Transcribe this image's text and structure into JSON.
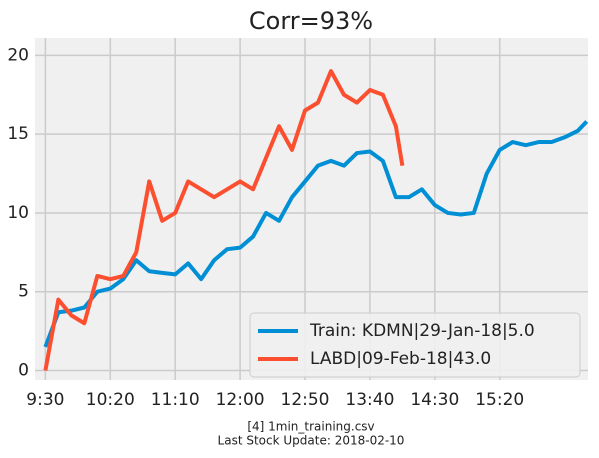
{
  "chart_data": {
    "type": "line",
    "title": "Corr=93%",
    "footnote": [
      "[4] 1min_training.csv",
      "Last Stock Update: 2018-02-10"
    ],
    "legend": "lower right",
    "grid": true,
    "xlim": [
      562,
      988
    ],
    "ylim": [
      -0.6,
      21.1
    ],
    "xticks": [
      {
        "value": 570,
        "label": "9:30"
      },
      {
        "value": 620,
        "label": "10:20"
      },
      {
        "value": 670,
        "label": "11:10"
      },
      {
        "value": 720,
        "label": "12:00"
      },
      {
        "value": 770,
        "label": "12:50"
      },
      {
        "value": 820,
        "label": "13:40"
      },
      {
        "value": 870,
        "label": "14:30"
      },
      {
        "value": 920,
        "label": "15:20"
      }
    ],
    "yticks": [
      0,
      5,
      10,
      15,
      20
    ],
    "series": [
      {
        "name": "Train: KDMN|29-Jan-18|5.0",
        "color": "#008fd5",
        "x": [
          570,
          580,
          590,
          600,
          610,
          620,
          630,
          640,
          650,
          660,
          670,
          680,
          690,
          700,
          710,
          720,
          730,
          740,
          750,
          760,
          770,
          780,
          790,
          800,
          810,
          820,
          830,
          840,
          850,
          860,
          870,
          880,
          890,
          900,
          910,
          920,
          930,
          940,
          950,
          960,
          970,
          980,
          987
        ],
        "values": [
          1.5,
          3.7,
          3.8,
          4.0,
          5.0,
          5.2,
          5.8,
          7.0,
          6.3,
          6.2,
          6.1,
          6.8,
          5.8,
          7.0,
          7.7,
          7.8,
          8.5,
          10.0,
          9.5,
          11.0,
          12.0,
          13.0,
          13.3,
          13.0,
          13.8,
          13.9,
          13.3,
          11.0,
          11.0,
          11.5,
          10.5,
          10.0,
          9.9,
          10.0,
          12.5,
          14.0,
          14.5,
          14.3,
          14.5,
          14.5,
          14.8,
          15.2,
          15.8
        ]
      },
      {
        "name": "LABD|09-Feb-18|43.0",
        "color": "#fc4f30",
        "x": [
          570,
          580,
          590,
          600,
          610,
          620,
          630,
          640,
          650,
          660,
          670,
          680,
          690,
          700,
          710,
          720,
          730,
          740,
          750,
          760,
          770,
          780,
          790,
          800,
          810,
          820,
          830,
          840,
          845
        ],
        "values": [
          0,
          4.5,
          3.5,
          3.0,
          6.0,
          5.8,
          6.0,
          7.5,
          12.0,
          9.5,
          10.0,
          12.0,
          11.5,
          11.0,
          11.5,
          12.0,
          11.5,
          13.5,
          15.5,
          14.0,
          16.5,
          17.0,
          19.0,
          17.5,
          17.0,
          17.8,
          17.5,
          15.5,
          13.0
        ]
      }
    ]
  }
}
